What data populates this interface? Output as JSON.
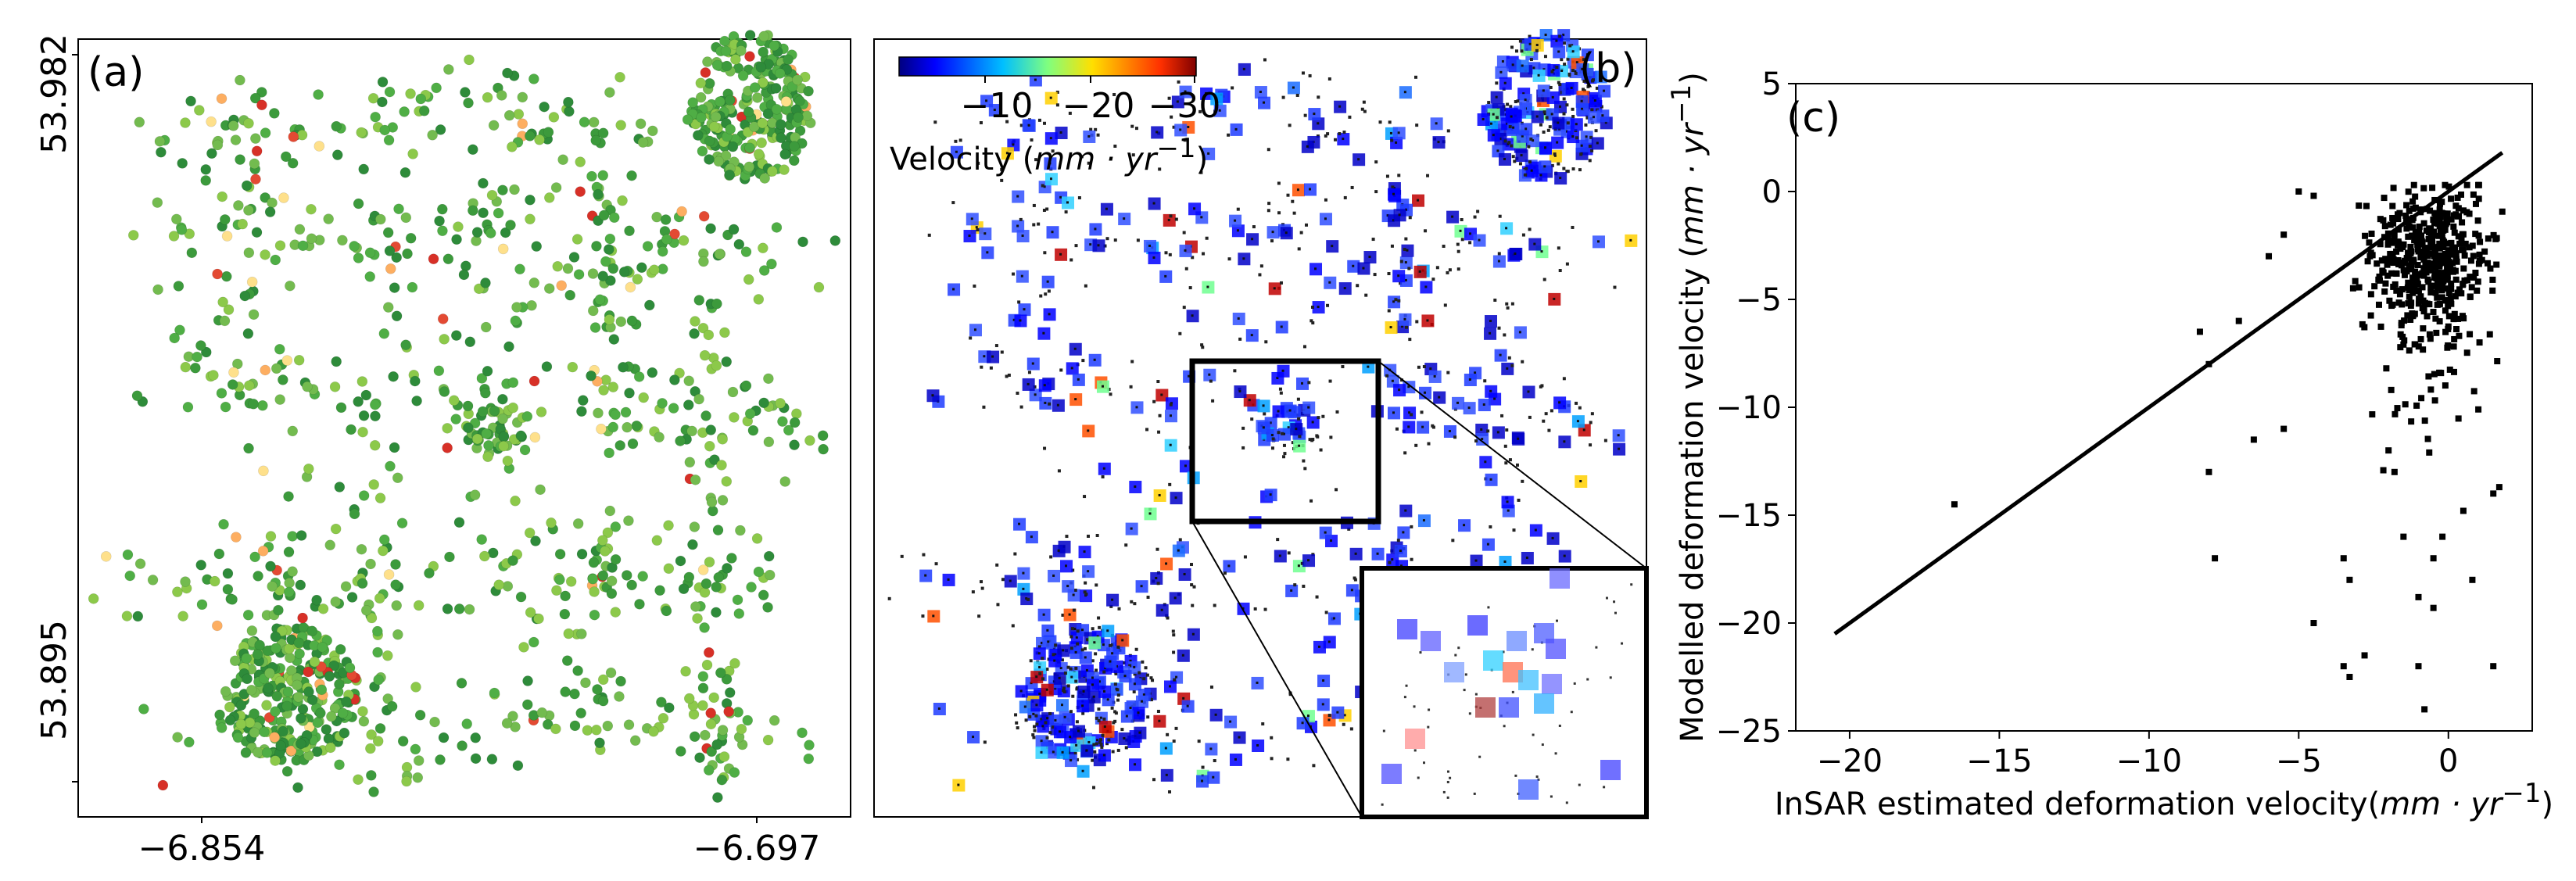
{
  "chart_data": [
    {
      "panel_label": "(a)",
      "type": "scatter",
      "description_axes": {
        "x_ticks": [
          "−6.854",
          "−6.697"
        ],
        "y_ticks": [
          "53.982",
          "53.895"
        ]
      },
      "clusters": [
        {
          "name": "dense NE",
          "cx": 0.88,
          "cy": 0.08,
          "rx": 0.08,
          "ry": 0.1,
          "n": 260
        },
        {
          "name": "dense SW",
          "cx": 0.27,
          "cy": 0.85,
          "rx": 0.09,
          "ry": 0.09,
          "n": 260
        },
        {
          "name": "center",
          "cx": 0.54,
          "cy": 0.5,
          "rx": 0.04,
          "ry": 0.04,
          "n": 40
        }
      ],
      "scattered_points": 900,
      "colors": {
        "main": [
          "#3c9a3c",
          "#4fae45",
          "#2e8b3a",
          "#73bb4f",
          "#8cc94a"
        ],
        "outlier": [
          "#e34a33",
          "#fdae61",
          "#fee08b",
          "#d73027"
        ]
      }
    },
    {
      "panel_label": "(b)",
      "type": "scatter",
      "colorbar": {
        "label_prefix": "Velocity (",
        "label_unit": "mm · yr",
        "label_exp": "−1",
        "label_suffix": ")",
        "ticks": [
          "−10",
          "−20",
          "−30"
        ],
        "colormap": "jet"
      },
      "inset": true
    },
    {
      "panel_label": "(c)",
      "type": "scatter",
      "xlabel_prefix": "InSAR estimated deformation velocity(",
      "xlabel_unit": "mm · yr",
      "xlabel_exp": "−1",
      "xlabel_suffix": ")",
      "ylabel_prefix": "Modelled deformation velocity (",
      "ylabel_unit": "mm · yr",
      "ylabel_exp": "−1",
      "ylabel_suffix": ")",
      "xlim": [
        -21.8,
        2.8
      ],
      "ylim": [
        -25,
        5
      ],
      "xticks": [
        -20,
        -15,
        -10,
        -5,
        0
      ],
      "xtick_labels": [
        "−20",
        "−15",
        "−10",
        "−5",
        "0"
      ],
      "yticks": [
        5,
        0,
        -5,
        -10,
        -15,
        -20,
        -25
      ],
      "ytick_labels": [
        "5",
        "0",
        "−5",
        "−10",
        "−15",
        "−20",
        "−25"
      ],
      "line": {
        "x": [
          -20.5,
          1.8
        ],
        "y": [
          -20.5,
          1.8
        ]
      },
      "outliers": [
        {
          "x": -16.5,
          "y": -14.5
        },
        {
          "x": -8,
          "y": -13
        },
        {
          "x": -7.8,
          "y": -17
        },
        {
          "x": -8.3,
          "y": -6.5
        },
        {
          "x": -8,
          "y": -8
        },
        {
          "x": -6.5,
          "y": -11.5
        },
        {
          "x": -5.5,
          "y": -11
        },
        {
          "x": -4.5,
          "y": -20
        },
        {
          "x": -3.5,
          "y": -22
        },
        {
          "x": -3.3,
          "y": -22.5
        },
        {
          "x": -2.8,
          "y": -21.5
        },
        {
          "x": -3.5,
          "y": -17
        },
        {
          "x": -3.3,
          "y": -18
        },
        {
          "x": -1.5,
          "y": -16
        },
        {
          "x": -1,
          "y": -22
        },
        {
          "x": -0.8,
          "y": -24
        },
        {
          "x": -1,
          "y": -18.8
        },
        {
          "x": -0.5,
          "y": -19.3
        },
        {
          "x": -0.5,
          "y": -17
        },
        {
          "x": 0.8,
          "y": -18
        },
        {
          "x": 1.5,
          "y": -22
        },
        {
          "x": 1.5,
          "y": -14
        },
        {
          "x": 1.7,
          "y": -13.7
        },
        {
          "x": -0.2,
          "y": -16
        },
        {
          "x": 0.5,
          "y": -14.8
        },
        {
          "x": -5,
          "y": 0
        },
        {
          "x": -4.5,
          "y": -0.2
        },
        {
          "x": -6,
          "y": -3
        },
        {
          "x": -5.5,
          "y": -2
        },
        {
          "x": -7,
          "y": -6
        },
        {
          "x": -2,
          "y": -12
        },
        {
          "x": -1.8,
          "y": -13
        }
      ],
      "bulk": {
        "x_mean": -0.7,
        "x_sd": 1.0,
        "y_core": [
          -6,
          0
        ],
        "n": 500
      }
    }
  ]
}
